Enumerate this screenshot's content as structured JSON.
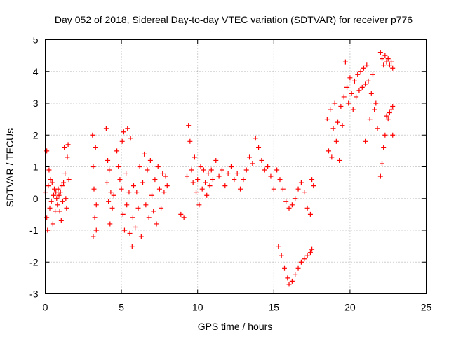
{
  "chart_data": {
    "type": "scatter",
    "title": "Day 052 of 2018, Sidereal Day-to-day VTEC variation (SDTVAR) for receiver p776",
    "xlabel": "GPS time / hours",
    "ylabel": "SDTVAR / TECUs",
    "xlim": [
      0,
      25
    ],
    "ylim": [
      -3,
      5
    ],
    "xticks": [
      0,
      5,
      10,
      15,
      20,
      25
    ],
    "yticks": [
      -3,
      -2,
      -1,
      0,
      1,
      2,
      3,
      4,
      5
    ],
    "xtick_labels": [
      "0",
      "5",
      "10",
      "15",
      "20",
      "25"
    ],
    "ytick_labels": [
      "-3",
      "-2",
      "-1",
      "0",
      "1",
      "2",
      "3",
      "4",
      "5"
    ],
    "grid": true,
    "marker": "+",
    "color": "#ff0000",
    "series": [
      {
        "name": "SDTVAR",
        "points": [
          [
            0.0,
            0.2
          ],
          [
            0.1,
            -0.6
          ],
          [
            0.1,
            1.5
          ],
          [
            0.15,
            -1.0
          ],
          [
            0.2,
            0.4
          ],
          [
            0.25,
            0.9
          ],
          [
            0.3,
            -0.3
          ],
          [
            0.35,
            0.6
          ],
          [
            0.4,
            -0.1
          ],
          [
            0.45,
            0.5
          ],
          [
            0.5,
            -0.8
          ],
          [
            0.55,
            0.1
          ],
          [
            0.6,
            0.3
          ],
          [
            0.65,
            -0.4
          ],
          [
            0.7,
            0.2
          ],
          [
            0.75,
            0.0
          ],
          [
            0.8,
            -0.2
          ],
          [
            0.85,
            0.3
          ],
          [
            0.9,
            0.1
          ],
          [
            0.95,
            -0.4
          ],
          [
            1.0,
            0.2
          ],
          [
            1.05,
            -0.7
          ],
          [
            1.1,
            0.4
          ],
          [
            1.15,
            -0.1
          ],
          [
            1.2,
            0.5
          ],
          [
            1.25,
            1.6
          ],
          [
            1.3,
            0.8
          ],
          [
            1.35,
            0.0
          ],
          [
            1.4,
            -0.3
          ],
          [
            1.45,
            1.3
          ],
          [
            1.5,
            1.7
          ],
          [
            1.55,
            0.6
          ],
          [
            3.1,
            2.0
          ],
          [
            3.15,
            1.0
          ],
          [
            3.15,
            -1.2
          ],
          [
            3.2,
            0.3
          ],
          [
            3.25,
            -0.6
          ],
          [
            3.3,
            1.6
          ],
          [
            3.35,
            -0.2
          ],
          [
            3.35,
            -1.0
          ],
          [
            4.0,
            2.2
          ],
          [
            4.05,
            0.5
          ],
          [
            4.1,
            1.2
          ],
          [
            4.15,
            -0.1
          ],
          [
            4.2,
            0.9
          ],
          [
            4.25,
            -0.8
          ],
          [
            4.3,
            0.2
          ],
          [
            4.4,
            -0.3
          ],
          [
            4.5,
            0.1
          ],
          [
            4.7,
            1.5
          ],
          [
            4.8,
            1.0
          ],
          [
            4.9,
            0.6
          ],
          [
            5.0,
            0.3
          ],
          [
            5.05,
            1.8
          ],
          [
            5.1,
            -0.5
          ],
          [
            5.15,
            2.1
          ],
          [
            5.2,
            -1.0
          ],
          [
            5.3,
            0.8
          ],
          [
            5.35,
            -0.2
          ],
          [
            5.4,
            2.2
          ],
          [
            5.5,
            0.2
          ],
          [
            5.55,
            -1.1
          ],
          [
            5.6,
            1.9
          ],
          [
            5.7,
            -1.5
          ],
          [
            5.75,
            -0.6
          ],
          [
            5.8,
            0.4
          ],
          [
            5.9,
            -0.9
          ],
          [
            6.0,
            0.2
          ],
          [
            6.1,
            -0.3
          ],
          [
            6.2,
            1.0
          ],
          [
            6.3,
            -1.2
          ],
          [
            6.4,
            0.5
          ],
          [
            6.5,
            1.4
          ],
          [
            6.6,
            -0.2
          ],
          [
            6.7,
            0.9
          ],
          [
            6.8,
            -0.6
          ],
          [
            6.9,
            1.2
          ],
          [
            7.0,
            0.1
          ],
          [
            7.1,
            -0.4
          ],
          [
            7.2,
            0.6
          ],
          [
            7.3,
            -0.8
          ],
          [
            7.4,
            1.0
          ],
          [
            7.5,
            0.3
          ],
          [
            7.6,
            -0.3
          ],
          [
            7.7,
            0.8
          ],
          [
            7.8,
            0.2
          ],
          [
            7.9,
            0.7
          ],
          [
            8.0,
            0.4
          ],
          [
            8.9,
            -0.5
          ],
          [
            9.1,
            -0.6
          ],
          [
            9.3,
            0.7
          ],
          [
            9.4,
            2.3
          ],
          [
            9.5,
            1.8
          ],
          [
            9.6,
            0.9
          ],
          [
            9.7,
            0.5
          ],
          [
            9.8,
            1.3
          ],
          [
            9.9,
            0.2
          ],
          [
            10.0,
            0.6
          ],
          [
            10.1,
            -0.2
          ],
          [
            10.2,
            1.0
          ],
          [
            10.3,
            0.3
          ],
          [
            10.4,
            0.9
          ],
          [
            10.5,
            0.5
          ],
          [
            10.6,
            0.1
          ],
          [
            10.7,
            0.8
          ],
          [
            10.8,
            0.4
          ],
          [
            10.9,
            0.9
          ],
          [
            11.0,
            0.6
          ],
          [
            11.2,
            1.2
          ],
          [
            11.4,
            0.7
          ],
          [
            11.6,
            0.9
          ],
          [
            11.8,
            0.4
          ],
          [
            12.0,
            0.8
          ],
          [
            12.2,
            1.0
          ],
          [
            12.4,
            0.6
          ],
          [
            12.6,
            0.8
          ],
          [
            12.8,
            0.3
          ],
          [
            13.0,
            0.6
          ],
          [
            13.2,
            0.9
          ],
          [
            13.4,
            1.3
          ],
          [
            13.6,
            1.1
          ],
          [
            13.8,
            1.9
          ],
          [
            14.0,
            1.6
          ],
          [
            14.2,
            1.2
          ],
          [
            14.4,
            0.9
          ],
          [
            14.6,
            1.0
          ],
          [
            14.8,
            0.7
          ],
          [
            15.0,
            0.3
          ],
          [
            15.2,
            0.9
          ],
          [
            15.4,
            0.6
          ],
          [
            15.6,
            0.3
          ],
          [
            15.8,
            -0.1
          ],
          [
            16.0,
            -0.3
          ],
          [
            16.2,
            -0.2
          ],
          [
            16.4,
            0.0
          ],
          [
            16.6,
            0.3
          ],
          [
            16.8,
            0.5
          ],
          [
            17.0,
            0.2
          ],
          [
            17.2,
            -0.3
          ],
          [
            17.4,
            -0.5
          ],
          [
            17.5,
            0.6
          ],
          [
            17.6,
            0.4
          ],
          [
            15.3,
            -1.5
          ],
          [
            15.5,
            -1.8
          ],
          [
            15.7,
            -2.2
          ],
          [
            15.9,
            -2.5
          ],
          [
            16.0,
            -2.7
          ],
          [
            16.2,
            -2.6
          ],
          [
            16.4,
            -2.4
          ],
          [
            16.6,
            -2.2
          ],
          [
            16.8,
            -2.0
          ],
          [
            17.0,
            -1.9
          ],
          [
            17.2,
            -1.8
          ],
          [
            17.4,
            -1.7
          ],
          [
            17.5,
            -1.6
          ],
          [
            18.5,
            2.5
          ],
          [
            18.6,
            1.5
          ],
          [
            18.7,
            2.8
          ],
          [
            18.8,
            1.3
          ],
          [
            18.9,
            2.2
          ],
          [
            19.0,
            3.0
          ],
          [
            19.1,
            1.8
          ],
          [
            19.2,
            2.4
          ],
          [
            19.3,
            1.2
          ],
          [
            19.4,
            2.9
          ],
          [
            19.5,
            2.3
          ],
          [
            19.6,
            3.2
          ],
          [
            19.7,
            4.3
          ],
          [
            19.8,
            3.5
          ],
          [
            19.9,
            3.0
          ],
          [
            20.0,
            3.8
          ],
          [
            20.1,
            3.3
          ],
          [
            20.2,
            2.8
          ],
          [
            20.3,
            3.7
          ],
          [
            20.4,
            3.2
          ],
          [
            20.5,
            3.9
          ],
          [
            20.6,
            3.4
          ],
          [
            20.7,
            4.0
          ],
          [
            20.8,
            3.5
          ],
          [
            20.9,
            4.1
          ],
          [
            21.0,
            3.6
          ],
          [
            21.0,
            1.8
          ],
          [
            21.1,
            4.2
          ],
          [
            21.2,
            3.7
          ],
          [
            21.3,
            2.5
          ],
          [
            21.4,
            3.3
          ],
          [
            21.5,
            3.9
          ],
          [
            21.6,
            2.8
          ],
          [
            21.7,
            3.0
          ],
          [
            21.8,
            2.2
          ],
          [
            22.0,
            0.7
          ],
          [
            22.1,
            1.1
          ],
          [
            22.2,
            1.6
          ],
          [
            22.3,
            2.0
          ],
          [
            22.4,
            2.6
          ],
          [
            22.5,
            2.5
          ],
          [
            22.6,
            2.7
          ],
          [
            22.7,
            2.8
          ],
          [
            22.8,
            2.9
          ],
          [
            22.0,
            4.6
          ],
          [
            22.1,
            4.4
          ],
          [
            22.2,
            4.2
          ],
          [
            22.3,
            4.5
          ],
          [
            22.4,
            4.3
          ],
          [
            22.5,
            4.4
          ],
          [
            22.6,
            4.2
          ],
          [
            22.7,
            4.3
          ],
          [
            22.8,
            4.1
          ],
          [
            22.8,
            2.0
          ]
        ]
      }
    ]
  }
}
